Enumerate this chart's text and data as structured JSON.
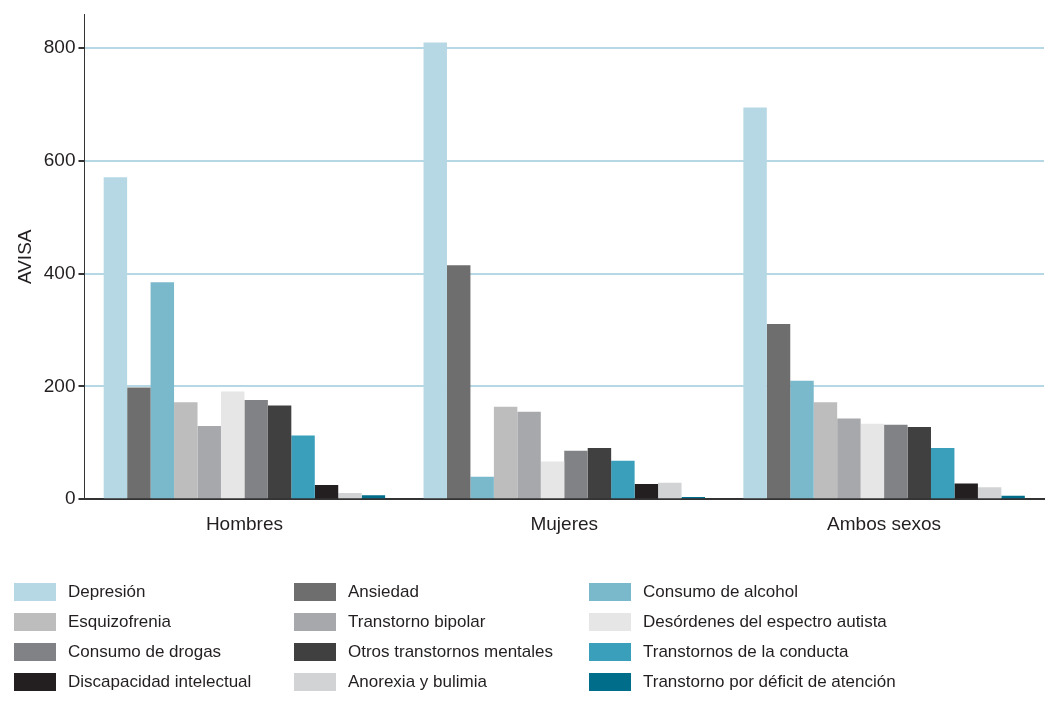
{
  "chart_data": {
    "type": "bar",
    "ylabel": "AVISA",
    "categories": [
      "Hombres",
      "Mujeres",
      "Ambos sexos"
    ],
    "ylim": [
      0,
      860
    ],
    "yticks": [
      0,
      200,
      400,
      600,
      800
    ],
    "grid": "y",
    "legend": "bottom",
    "series": [
      {
        "name": "Depresión",
        "color": "#b6d8e4",
        "values": [
          571,
          810,
          695
        ]
      },
      {
        "name": "Ansiedad",
        "color": "#6e6e6e",
        "values": [
          198,
          415,
          311
        ]
      },
      {
        "name": "Consumo de alcohol",
        "color": "#7ab8cb",
        "values": [
          385,
          40,
          210
        ]
      },
      {
        "name": "Esquizofrenia",
        "color": "#bdbdbd",
        "values": [
          172,
          164,
          172
        ]
      },
      {
        "name": "Transtorno bipolar",
        "color": "#a7a8ab",
        "values": [
          130,
          155,
          143
        ]
      },
      {
        "name": "Desórdenes del espectro autista",
        "color": "#e6e6e6",
        "values": [
          191,
          67,
          134
        ]
      },
      {
        "name": "Consumo de drogas",
        "color": "#808285",
        "values": [
          176,
          86,
          132
        ]
      },
      {
        "name": "Otros transtornos mentales",
        "color": "#404040",
        "values": [
          166,
          91,
          128
        ]
      },
      {
        "name": "Transtornos de la conducta",
        "color": "#3a9fba",
        "values": [
          113,
          68,
          91
        ]
      },
      {
        "name": "Discapacidad intelectual",
        "color": "#231f20",
        "values": [
          25,
          27,
          28
        ]
      },
      {
        "name": "Anorexia y bulimia",
        "color": "#d1d3d4",
        "values": [
          11,
          29,
          21
        ]
      },
      {
        "name": "Transtorno por déficit de atención",
        "color": "#006d8a",
        "values": [
          7,
          4,
          6
        ]
      }
    ]
  }
}
